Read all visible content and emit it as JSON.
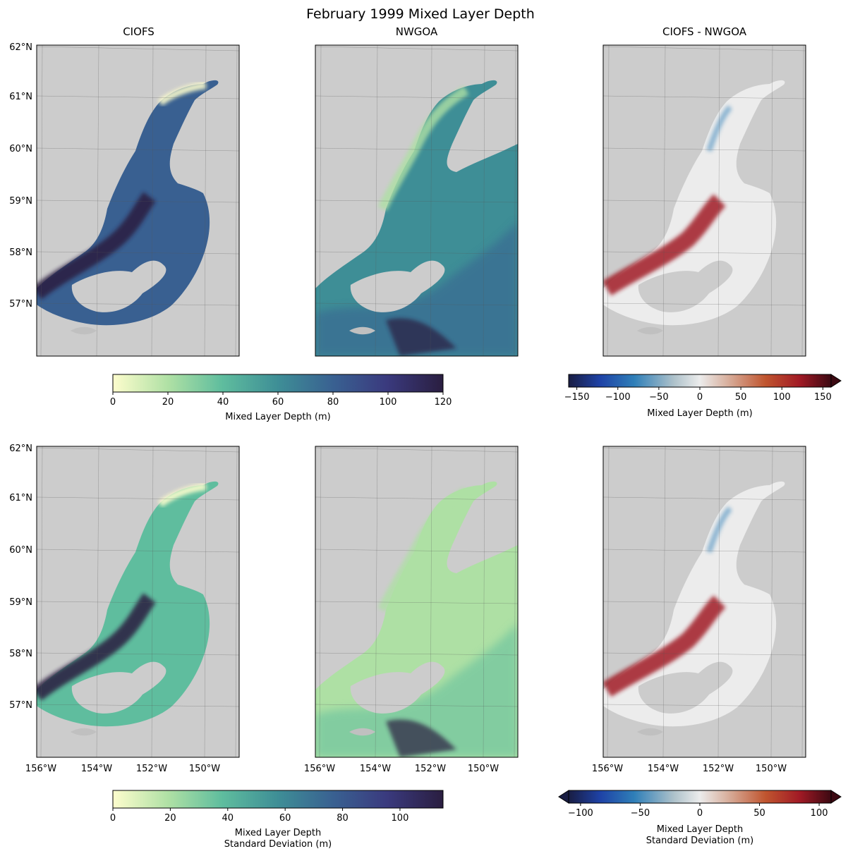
{
  "figure": {
    "title": "February 1999 Mixed Layer Depth"
  },
  "chart_data": [
    {
      "type": "heatmap",
      "panel": "mean-ciofs",
      "title": "CIOFS",
      "variable": "mean",
      "yticks": [
        "62°N",
        "61°N",
        "60°N",
        "59°N",
        "58°N",
        "57°N"
      ],
      "xticks": []
    },
    {
      "type": "heatmap",
      "panel": "mean-nwgoa",
      "title": "NWGOA",
      "variable": "mean",
      "yticks": [],
      "xticks": []
    },
    {
      "type": "heatmap",
      "panel": "mean-diff",
      "title": "CIOFS - NWGOA",
      "variable": "mean difference",
      "yticks": [],
      "xticks": []
    },
    {
      "type": "heatmap",
      "panel": "std-ciofs",
      "title": "",
      "variable": "standard deviation",
      "yticks": [
        "62°N",
        "61°N",
        "60°N",
        "59°N",
        "58°N",
        "57°N"
      ],
      "xticks": [
        "156°W",
        "154°W",
        "152°W",
        "150°W"
      ]
    },
    {
      "type": "heatmap",
      "panel": "std-nwgoa",
      "title": "",
      "variable": "standard deviation",
      "yticks": [],
      "xticks": [
        "156°W",
        "154°W",
        "152°W",
        "150°W"
      ]
    },
    {
      "type": "heatmap",
      "panel": "std-diff",
      "title": "",
      "variable": "standard deviation difference",
      "yticks": [],
      "xticks": [
        "156°W",
        "154°W",
        "152°W",
        "150°W"
      ]
    }
  ],
  "colorbars": {
    "mean_deep": {
      "range": [
        0,
        120
      ],
      "ticks": [
        0,
        20,
        40,
        60,
        80,
        100,
        120
      ],
      "label": [
        "Mixed Layer Depth (m)"
      ],
      "extend": "neither"
    },
    "mean_balance": {
      "range": [
        -160,
        160
      ],
      "ticks": [
        -150,
        -100,
        -50,
        0,
        50,
        100,
        150
      ],
      "label": [
        "Mixed Layer Depth (m)"
      ],
      "extend": "max"
    },
    "std_deep": {
      "range": [
        0,
        115
      ],
      "ticks": [
        0,
        20,
        40,
        60,
        80,
        100
      ],
      "label": [
        "Mixed Layer Depth",
        "Standard Deviation (m)"
      ],
      "extend": "neither"
    },
    "std_balance": {
      "range": [
        -110,
        110
      ],
      "ticks": [
        -100,
        -50,
        0,
        50,
        100
      ],
      "label": [
        "Mixed Layer Depth",
        "Standard Deviation (m)"
      ],
      "extend": "both"
    }
  },
  "colors": {
    "land": "#cccccc",
    "deep_ramp": [
      "#fdfdcd",
      "#aee0a4",
      "#5fbd9e",
      "#3e8e96",
      "#396091",
      "#3a3a7e",
      "#2a1e40"
    ],
    "balance_ramp": [
      "#191d43",
      "#1e42a6",
      "#2f7fb8",
      "#adc1ca",
      "#ececec",
      "#d9b3a2",
      "#c0552f",
      "#a11a25",
      "#3c0912"
    ]
  }
}
